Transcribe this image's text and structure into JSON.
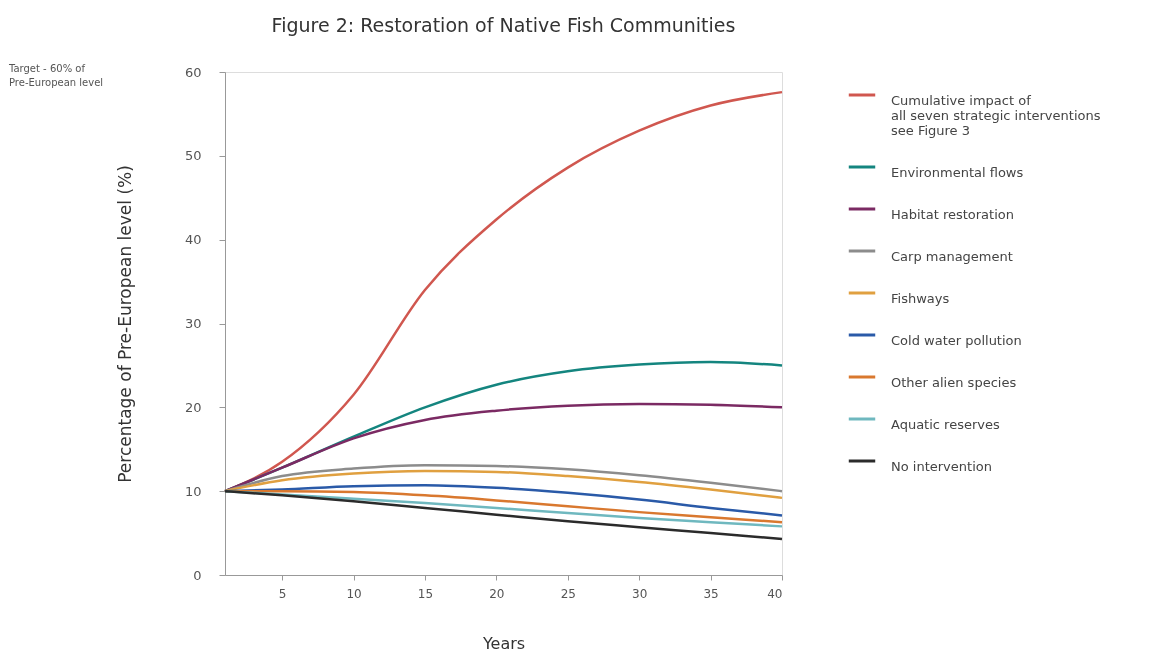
{
  "chart_data": {
    "type": "line",
    "title": "Figure 2: Restoration of Native Fish Communities",
    "xlabel": "Years",
    "ylabel": "Percentage of Pre-European level (%)",
    "x": [
      1,
      5,
      10,
      15,
      20,
      25,
      30,
      35,
      40
    ],
    "series": [
      {
        "name": "Cumulative impact of\nall seven strategic interventions\nsee Figure 3",
        "color": "#d0574f",
        "values": [
          10,
          13.5,
          21.5,
          34,
          42.4,
          48.6,
          53,
          56,
          57.6
        ]
      },
      {
        "name": "Environmental flows",
        "color": "#14857f",
        "values": [
          10,
          12.8,
          16.5,
          20,
          22.7,
          24.3,
          25.1,
          25.4,
          25
        ]
      },
      {
        "name": "Habitat restoration",
        "color": "#7b2a63",
        "values": [
          10,
          12.8,
          16.3,
          18.5,
          19.6,
          20.2,
          20.4,
          20.3,
          20
        ]
      },
      {
        "name": "Carp management",
        "color": "#8c8c8c",
        "values": [
          10,
          11.8,
          12.7,
          13.1,
          13.0,
          12.6,
          11.9,
          11.0,
          10
        ]
      },
      {
        "name": "Fishways",
        "color": "#e0a040",
        "values": [
          10,
          11.3,
          12.1,
          12.4,
          12.3,
          11.8,
          11.1,
          10.2,
          9.2
        ]
      },
      {
        "name": "Cold water pollution",
        "color": "#2a5aa8",
        "values": [
          10,
          10.2,
          10.6,
          10.7,
          10.4,
          9.8,
          9.0,
          8.0,
          7.1
        ]
      },
      {
        "name": "Other alien species",
        "color": "#d9782f",
        "values": [
          10,
          10.0,
          9.9,
          9.5,
          8.9,
          8.2,
          7.5,
          6.9,
          6.3
        ]
      },
      {
        "name": "Aquatic reserves",
        "color": "#6fb8bf",
        "values": [
          10,
          9.6,
          9.1,
          8.6,
          8.0,
          7.4,
          6.8,
          6.3,
          5.8
        ]
      },
      {
        "name": "No intervention",
        "color": "#2b2b2b",
        "values": [
          10,
          9.5,
          8.8,
          8.0,
          7.2,
          6.4,
          5.7,
          5.0,
          4.3
        ]
      }
    ],
    "annotations": [
      "Target - 60% of\nPre-European level"
    ],
    "xlim": [
      1,
      40
    ],
    "xticks": [
      5,
      10,
      15,
      20,
      25,
      30,
      35,
      40
    ],
    "ylim": [
      0,
      60
    ],
    "yticks": [
      0,
      10,
      20,
      30,
      40,
      50,
      60
    ],
    "grid": false,
    "legend": "right",
    "marker": "none",
    "line_style": "solid"
  }
}
